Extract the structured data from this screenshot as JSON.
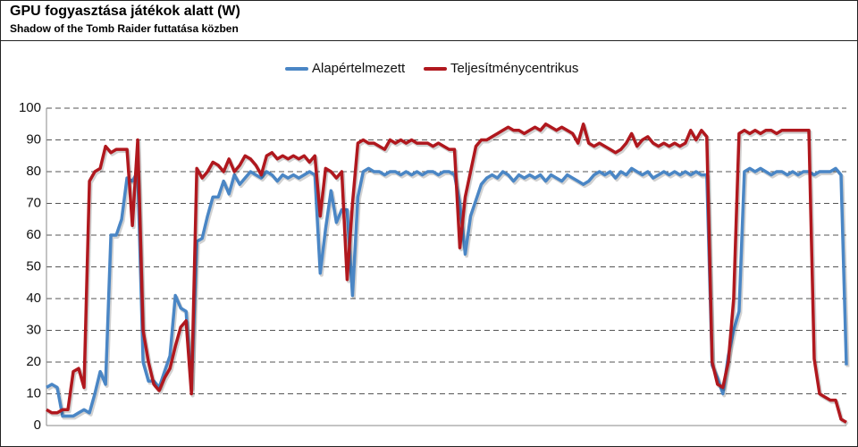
{
  "chart_data": {
    "type": "line",
    "title": "GPU fogyasztása játékok alatt (W)",
    "subtitle": "Shadow of the Tomb Raider futtatása közben",
    "ylim": [
      0,
      100
    ],
    "yticks": [
      0,
      10,
      20,
      30,
      40,
      50,
      60,
      70,
      80,
      90,
      100
    ],
    "grid": true,
    "legend": "top",
    "series": [
      {
        "name": "Alapértelmezett",
        "color": "#4a86c5",
        "values": [
          12,
          13,
          12,
          3,
          3,
          3,
          4,
          5,
          4,
          10,
          17,
          13,
          60,
          60,
          65,
          78,
          77,
          80,
          20,
          14,
          14,
          12,
          17,
          22,
          41,
          37,
          36,
          12,
          58,
          59,
          66,
          72,
          72,
          77,
          73,
          79,
          76,
          78,
          80,
          79,
          78,
          80,
          79,
          77,
          79,
          78,
          79,
          78,
          79,
          80,
          79,
          48,
          62,
          74,
          64,
          68,
          68,
          41,
          72,
          80,
          81,
          80,
          80,
          79,
          80,
          80,
          79,
          80,
          79,
          80,
          79,
          80,
          80,
          79,
          80,
          80,
          79,
          70,
          54,
          66,
          71,
          76,
          78,
          79,
          78,
          80,
          79,
          77,
          79,
          78,
          79,
          78,
          79,
          77,
          79,
          78,
          77,
          79,
          78,
          77,
          76,
          77,
          79,
          80,
          79,
          80,
          78,
          80,
          79,
          81,
          80,
          79,
          80,
          78,
          79,
          80,
          79,
          80,
          79,
          80,
          79,
          80,
          79,
          79,
          19,
          15,
          10,
          22,
          30,
          36,
          80,
          81,
          80,
          81,
          80,
          79,
          80,
          80,
          79,
          80,
          79,
          80,
          80,
          79,
          80,
          80,
          80,
          81,
          79,
          19
        ]
      },
      {
        "name": "Teljesítménycentrikus",
        "color": "#b0181e",
        "values": [
          5,
          4,
          4,
          5,
          5,
          17,
          18,
          12,
          77,
          80,
          81,
          88,
          86,
          87,
          87,
          87,
          63,
          90,
          30,
          20,
          13,
          11,
          15,
          18,
          25,
          31,
          33,
          10,
          81,
          78,
          80,
          83,
          82,
          80,
          84,
          80,
          82,
          85,
          84,
          82,
          79,
          85,
          86,
          84,
          85,
          84,
          85,
          84,
          85,
          83,
          85,
          66,
          81,
          80,
          78,
          80,
          46,
          70,
          89,
          90,
          89,
          89,
          88,
          87,
          90,
          89,
          90,
          89,
          90,
          89,
          89,
          89,
          88,
          89,
          88,
          87,
          87,
          56,
          72,
          80,
          88,
          90,
          90,
          91,
          92,
          93,
          94,
          93,
          93,
          92,
          93,
          94,
          93,
          95,
          94,
          93,
          94,
          93,
          92,
          89,
          95,
          89,
          88,
          89,
          88,
          87,
          86,
          87,
          89,
          92,
          88,
          90,
          91,
          89,
          88,
          89,
          88,
          89,
          88,
          89,
          93,
          90,
          93,
          91,
          20,
          13,
          12,
          20,
          40,
          92,
          93,
          92,
          93,
          92,
          93,
          93,
          92,
          93,
          93,
          93,
          93,
          93,
          93,
          21,
          10,
          9,
          8,
          8,
          2,
          1
        ]
      }
    ]
  }
}
